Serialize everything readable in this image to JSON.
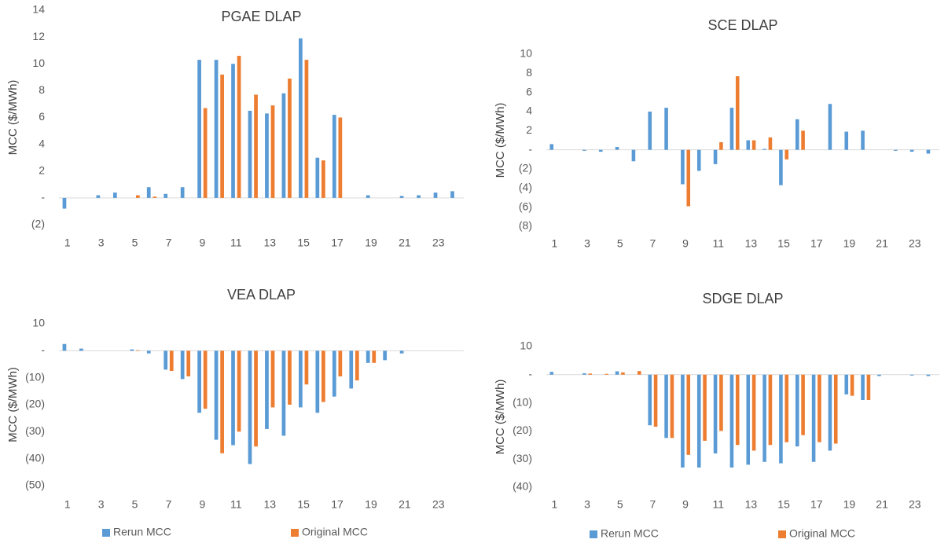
{
  "chart_data": [
    {
      "type": "bar",
      "title": "PGAE DLAP",
      "y_label": "MCC ($/MWh)",
      "categories": [
        1,
        null,
        3,
        null,
        5,
        null,
        7,
        null,
        9,
        null,
        11,
        null,
        13,
        null,
        15,
        null,
        17,
        null,
        19,
        null,
        21,
        null,
        23,
        null
      ],
      "series": [
        {
          "color": "#5b9bd5",
          "values": [
            -0.8,
            0,
            0.2,
            0.4,
            0,
            0.8,
            0.3,
            0.8,
            10.3,
            10.3,
            10,
            6.5,
            6.3,
            7.8,
            11.9,
            3,
            6.2,
            0,
            0.2,
            0,
            0.15,
            0.2,
            0.4,
            0.5
          ]
        },
        {
          "color": "#ed7d31",
          "values": [
            0,
            0,
            0,
            0,
            0.2,
            0.1,
            0,
            0,
            6.7,
            9.2,
            10.6,
            7.7,
            6.9,
            8.9,
            10.3,
            2.8,
            6,
            0,
            0,
            0,
            0,
            0,
            0,
            0
          ]
        }
      ],
      "ylim": [
        -2,
        14
      ],
      "yticks": [
        {
          "value": -2,
          "label": "(2)"
        },
        {
          "value": 0,
          "label": "-"
        },
        2,
        4,
        6,
        8,
        10,
        12,
        14
      ]
    },
    {
      "type": "bar",
      "title": "SCE DLAP",
      "y_label": "MCC ($/MWh)",
      "categories": [
        1,
        null,
        3,
        null,
        5,
        null,
        7,
        null,
        9,
        null,
        11,
        null,
        13,
        null,
        15,
        null,
        17,
        null,
        19,
        null,
        21,
        null,
        23,
        null
      ],
      "series": [
        {
          "color": "#5b9bd5",
          "values": [
            0.6,
            0,
            -0.1,
            -0.2,
            0.3,
            -1.2,
            4,
            4.4,
            -3.6,
            -2.2,
            -1.5,
            4.4,
            1,
            0.1,
            -3.7,
            3.2,
            0,
            4.8,
            1.9,
            2,
            0,
            -0.1,
            -0.2,
            -0.4
          ]
        },
        {
          "color": "#ed7d31",
          "values": [
            0,
            0,
            0,
            0,
            0,
            0,
            0,
            0,
            -5.9,
            0,
            0.8,
            7.7,
            1,
            1.3,
            -1,
            2,
            0,
            0,
            0,
            0,
            0,
            0,
            0,
            0
          ]
        }
      ],
      "ylim": [
        -8,
        10
      ],
      "yticks": [
        {
          "value": -8,
          "label": "(8)"
        },
        {
          "value": -6,
          "label": "(6)"
        },
        {
          "value": -4,
          "label": "(4)"
        },
        {
          "value": -2,
          "label": "(2)"
        },
        {
          "value": 0,
          "label": "-"
        },
        2,
        4,
        6,
        8,
        10
      ]
    },
    {
      "type": "bar",
      "title": "VEA DLAP",
      "y_label": "MCC ($/MWh)",
      "categories": [
        1,
        null,
        3,
        null,
        5,
        null,
        7,
        null,
        9,
        null,
        11,
        null,
        13,
        null,
        15,
        null,
        17,
        null,
        19,
        null,
        21,
        null,
        23,
        null
      ],
      "series": [
        {
          "name": "Rerun MCC",
          "color": "#5b9bd5",
          "values": [
            2.5,
            0.8,
            0,
            0,
            0.5,
            -1,
            -7,
            -10.5,
            -23,
            -33,
            -35,
            -42,
            -29,
            -31.5,
            -21,
            -23,
            -17,
            -14,
            -4.5,
            -3.5,
            -1,
            0,
            0,
            0
          ]
        },
        {
          "name": "Original MCC",
          "color": "#ed7d31",
          "values": [
            0,
            0,
            0,
            0,
            0.2,
            0,
            -7.5,
            -9.5,
            -21.5,
            -38,
            -30,
            -35.5,
            -21,
            -20,
            -12.5,
            -19,
            -9.5,
            -11,
            -4.5,
            0,
            0,
            0,
            0,
            0
          ]
        }
      ],
      "ylim": [
        -50,
        10
      ],
      "yticks": [
        {
          "value": -50,
          "label": "(50)"
        },
        {
          "value": -40,
          "label": "(40)"
        },
        {
          "value": -30,
          "label": "(30)"
        },
        {
          "value": -20,
          "label": "(20)"
        },
        {
          "value": -10,
          "label": "(10)"
        },
        {
          "value": 0,
          "label": "-"
        },
        10
      ]
    },
    {
      "type": "bar",
      "title": "SDGE DLAP",
      "y_label": "MCC ($/MWh)",
      "categories": [
        1,
        null,
        3,
        null,
        5,
        null,
        7,
        null,
        9,
        null,
        11,
        null,
        13,
        null,
        15,
        null,
        17,
        null,
        19,
        null,
        21,
        null,
        23,
        null
      ],
      "series": [
        {
          "name": "Rerun MCC",
          "color": "#5b9bd5",
          "values": [
            1,
            0,
            0.5,
            0,
            1.2,
            0,
            -18,
            -22.5,
            -33,
            -33,
            -28,
            -33,
            -32,
            -31,
            -31.5,
            -25.5,
            -31,
            -27,
            -7,
            -9,
            -0.5,
            0,
            -0.3,
            -0.5
          ]
        },
        {
          "name": "Original MCC",
          "color": "#ed7d31",
          "values": [
            0,
            0,
            0.4,
            0.3,
            0.8,
            1.3,
            -18.5,
            -22.5,
            -28.5,
            -23.5,
            -20,
            -25,
            -27,
            -25,
            -24,
            -21.5,
            -24,
            -24.5,
            -7.5,
            -9,
            0,
            0,
            0,
            0
          ]
        }
      ],
      "ylim": [
        -40,
        10
      ],
      "yticks": [
        {
          "value": -40,
          "label": "(40)"
        },
        {
          "value": -30,
          "label": "(30)"
        },
        {
          "value": -20,
          "label": "(20)"
        },
        {
          "value": -10,
          "label": "(10)"
        },
        {
          "value": 0,
          "label": "-"
        },
        10
      ]
    }
  ]
}
